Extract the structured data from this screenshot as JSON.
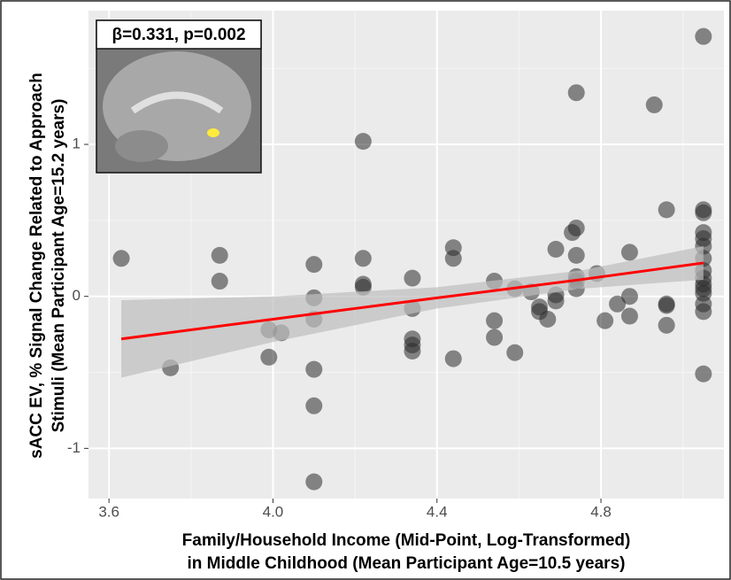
{
  "chart_data": {
    "type": "scatter",
    "annotation": "β=0.331, p=0.002",
    "x_label": [
      "Family/Household Income (Mid-Point, Log-Transformed)",
      "in Middle Childhood (Mean Participant Age=10.5 years)"
    ],
    "y_label": [
      "sACC EV, % Signal Change Related to Approach",
      "Stimuli (Mean Participant Age=15.2 years)"
    ],
    "xlim": [
      3.55,
      5.1
    ],
    "ylim": [
      -1.33,
      1.88
    ],
    "xticks": [
      3.6,
      {
        "value": 4,
        "label": "4.0"
      },
      4.4,
      4.8
    ],
    "yticks": [
      -1,
      0,
      1
    ],
    "x_minor_ticks": [
      3.8,
      4.2,
      4.6,
      5.0
    ],
    "y_minor_ticks": [
      -0.5,
      0.5,
      1.5
    ],
    "grid": true,
    "series": [
      {
        "color": "#2b2b2b",
        "x": [
          3.63,
          3.75,
          3.87,
          3.87,
          3.99,
          4.02,
          3.99,
          4.1,
          4.1,
          4.1,
          4.1,
          4.1,
          4.1,
          4.22,
          4.22,
          4.22,
          4.22,
          4.34,
          4.34,
          4.34,
          4.34,
          4.34,
          4.44,
          4.44,
          4.44,
          4.54,
          4.54,
          4.54,
          4.59,
          4.59,
          4.63,
          4.65,
          4.65,
          4.67,
          4.69,
          4.69,
          4.69,
          4.74,
          4.74,
          4.73,
          4.74,
          4.74,
          4.74,
          4.74,
          4.79,
          4.81,
          4.84,
          4.87,
          4.87,
          4.87,
          4.93,
          4.96,
          4.96,
          4.96,
          4.96,
          5.05,
          5.05,
          5.05,
          5.05,
          5.05,
          5.05,
          5.05,
          5.05,
          5.05,
          5.05,
          5.05,
          5.05,
          5.05,
          5.05,
          5.05
        ],
        "values": [
          0.25,
          -0.47,
          0.27,
          0.1,
          -0.22,
          -0.24,
          -0.4,
          0.21,
          -0.01,
          -0.15,
          -0.48,
          -0.72,
          -1.22,
          1.02,
          0.25,
          0.08,
          0.06,
          0.12,
          -0.08,
          -0.28,
          -0.32,
          -0.36,
          0.32,
          0.25,
          -0.41,
          0.1,
          -0.16,
          -0.27,
          0.05,
          -0.37,
          0.03,
          -0.07,
          -0.1,
          -0.15,
          0.31,
          0.01,
          -0.03,
          1.34,
          0.45,
          0.42,
          0.27,
          0.13,
          0.1,
          0.05,
          0.15,
          -0.16,
          -0.05,
          0.29,
          0.0,
          -0.13,
          1.26,
          0.57,
          -0.05,
          -0.06,
          -0.19,
          1.71,
          0.57,
          0.55,
          0.42,
          0.38,
          0.33,
          0.25,
          0.17,
          0.12,
          0.08,
          0.05,
          0.02,
          -0.05,
          -0.1,
          -0.51
        ]
      }
    ],
    "fit": {
      "color": "#ff0000",
      "band_color": "#bdbdbd",
      "x": [
        3.63,
        4.0,
        4.4,
        4.75,
        5.05
      ],
      "values": [
        -0.28,
        -0.15,
        -0.01,
        0.11,
        0.22
      ],
      "upper": [
        -0.025,
        0.0,
        0.06,
        0.17,
        0.33
      ],
      "lower": [
        -0.535,
        -0.3,
        -0.08,
        0.05,
        0.11
      ]
    }
  }
}
